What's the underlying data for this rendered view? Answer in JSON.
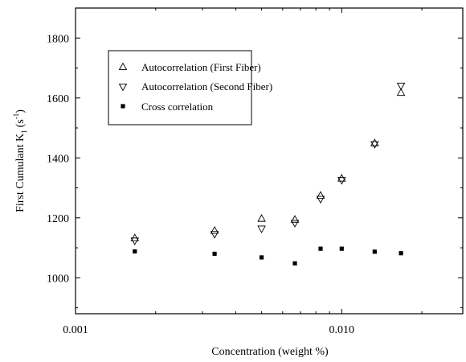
{
  "chart_data": {
    "type": "scatter",
    "xscale": "log",
    "xlim": [
      0.001,
      0.0285
    ],
    "ylim": [
      880,
      1900
    ],
    "xlabel": "Concentration (weight %)",
    "ylabel_main": "First Cumulant  K",
    "ylabel_sub": "1",
    "ylabel_unit_open": "(s",
    "ylabel_unit_sup": "-1",
    "ylabel_unit_close": ")",
    "x_ticks": [
      {
        "value": 0.001,
        "label": "0.001"
      },
      {
        "value": 0.01,
        "label": "0.010"
      }
    ],
    "y_ticks": [
      {
        "value": 1000,
        "label": "1000"
      },
      {
        "value": 1200,
        "label": "1200"
      },
      {
        "value": 1400,
        "label": "1400"
      },
      {
        "value": 1600,
        "label": "1600"
      },
      {
        "value": 1800,
        "label": "1800"
      }
    ],
    "grid": false,
    "legend_position": "top-left",
    "series": [
      {
        "name": "Autocorrelation  (First Fiber)",
        "marker": "triangle-up",
        "points": [
          {
            "x": 0.00167,
            "y": 1133
          },
          {
            "x": 0.00333,
            "y": 1158
          },
          {
            "x": 0.005,
            "y": 1198
          },
          {
            "x": 0.00667,
            "y": 1195
          },
          {
            "x": 0.00833,
            "y": 1275
          },
          {
            "x": 0.01,
            "y": 1332
          },
          {
            "x": 0.0133,
            "y": 1450
          },
          {
            "x": 0.0167,
            "y": 1618
          }
        ]
      },
      {
        "name": "Autocorrelation  (Second Fiber)",
        "marker": "triangle-down",
        "points": [
          {
            "x": 0.00167,
            "y": 1123
          },
          {
            "x": 0.00333,
            "y": 1145
          },
          {
            "x": 0.005,
            "y": 1163
          },
          {
            "x": 0.00667,
            "y": 1182
          },
          {
            "x": 0.00833,
            "y": 1262
          },
          {
            "x": 0.01,
            "y": 1325
          },
          {
            "x": 0.0133,
            "y": 1445
          },
          {
            "x": 0.0167,
            "y": 1640
          }
        ]
      },
      {
        "name": "Cross correlation",
        "marker": "square",
        "points": [
          {
            "x": 0.00167,
            "y": 1088
          },
          {
            "x": 0.00333,
            "y": 1080
          },
          {
            "x": 0.005,
            "y": 1068
          },
          {
            "x": 0.00667,
            "y": 1048
          },
          {
            "x": 0.00833,
            "y": 1097
          },
          {
            "x": 0.01,
            "y": 1097
          },
          {
            "x": 0.0133,
            "y": 1087
          },
          {
            "x": 0.0167,
            "y": 1082
          }
        ]
      }
    ]
  }
}
